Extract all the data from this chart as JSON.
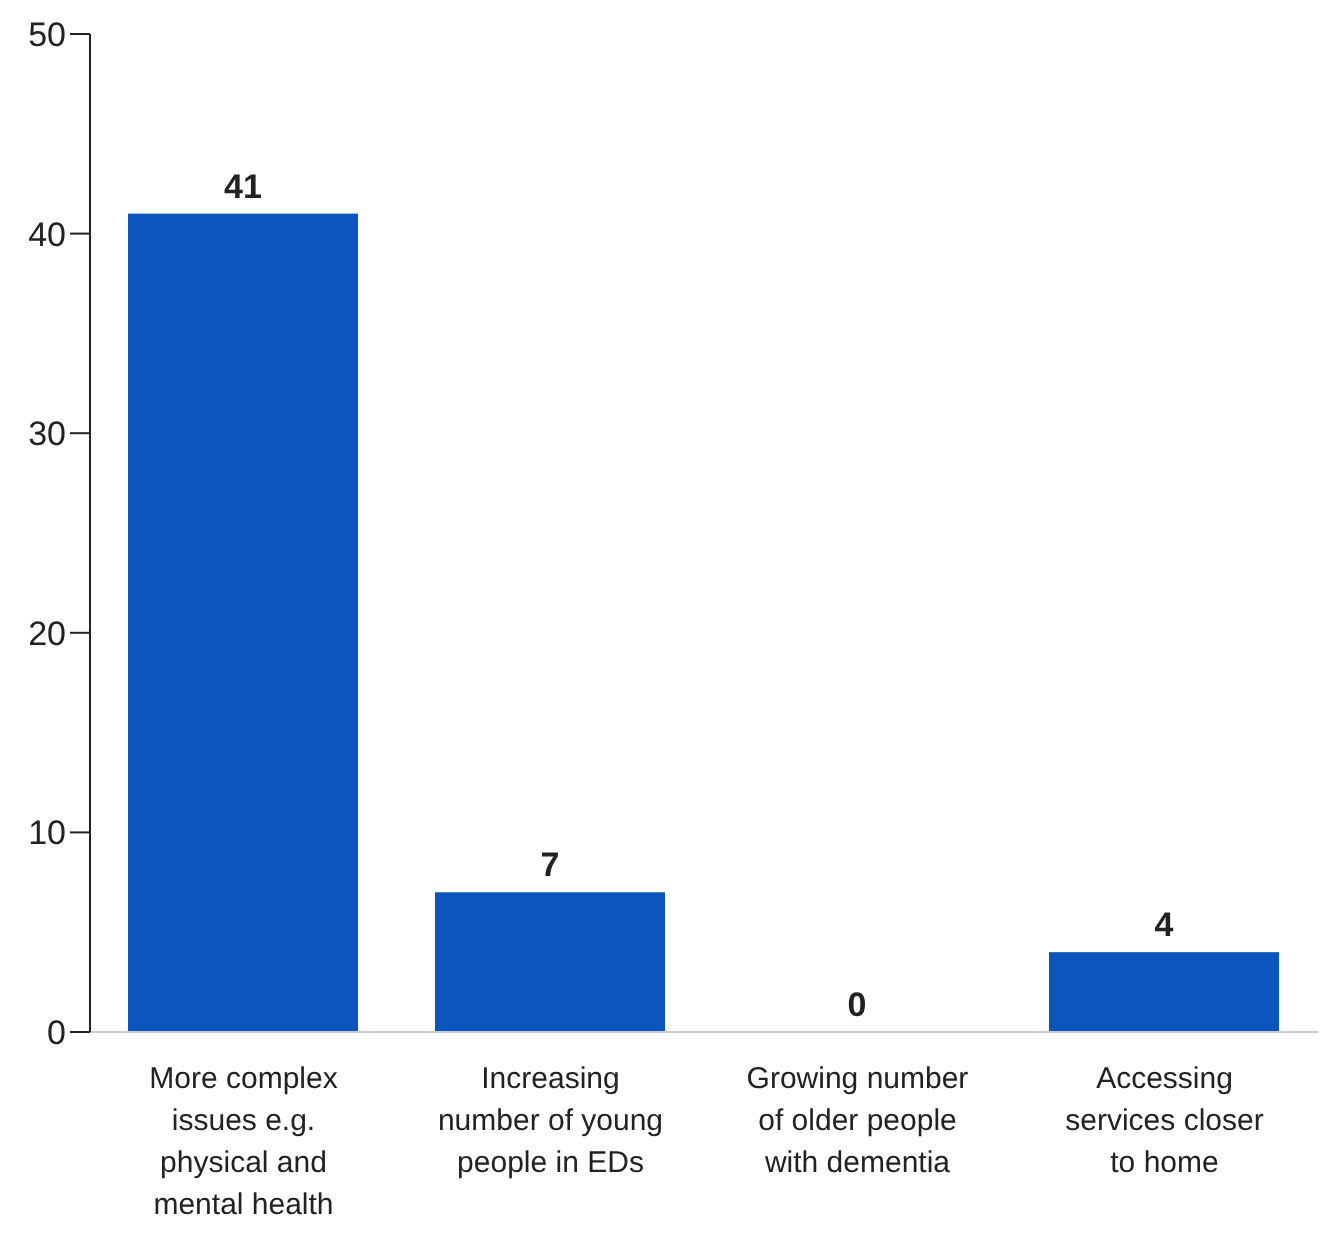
{
  "chart_data": {
    "type": "bar",
    "categories": [
      "More complex issues e.g. physical and mental health",
      "Increasing number of young people in EDs",
      "Growing number of older people with dementia",
      "Accessing services closer to home"
    ],
    "values": [
      41,
      7,
      0,
      4
    ],
    "color": "#0a56bd",
    "ylim": [
      0,
      50
    ],
    "yticks": [
      0,
      10,
      20,
      30,
      40,
      50
    ],
    "data_labels": true,
    "grid": false,
    "legend": false
  }
}
